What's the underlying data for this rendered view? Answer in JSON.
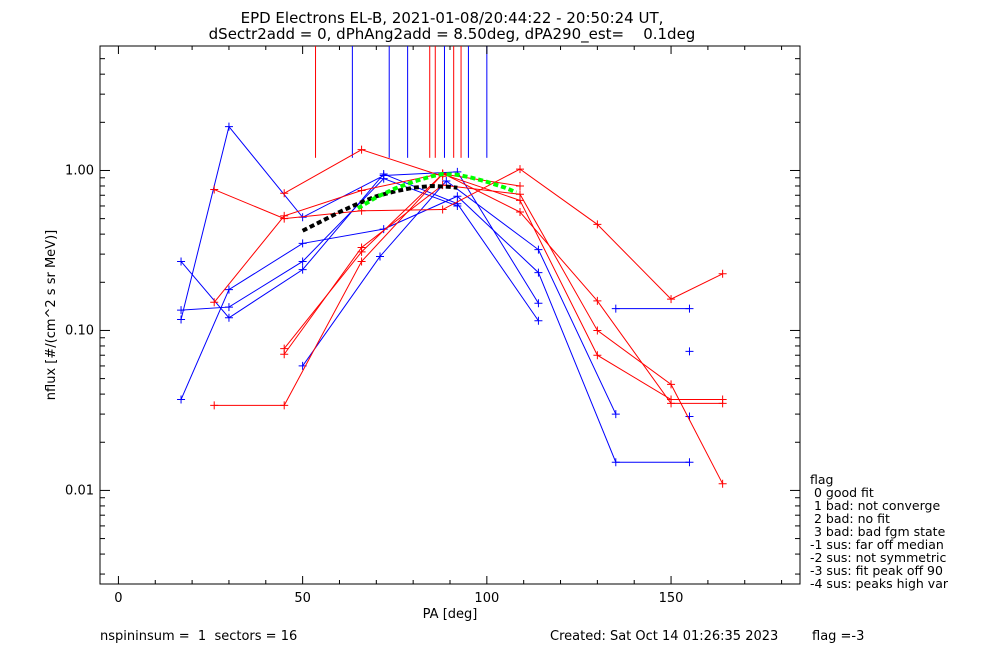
{
  "chart_data": {
    "type": "line",
    "title": "EPD Electrons EL-B, 2021-01-08/20:44:22 - 20:50:24 UT,",
    "subtitle": "dSectr2add = 0, dPhAng2add = 8.50deg, dPA290_est=    0.1deg",
    "xlabel": "PA [deg]",
    "ylabel": "nflux [#/(cm^2 s sr MeV)]",
    "xlim": [
      -5,
      185
    ],
    "ylim": [
      0.0026,
      6.0
    ],
    "y_scale": "log",
    "grid": false,
    "x_ticks": [
      {
        "value": 0,
        "label": "0"
      },
      {
        "value": 50,
        "label": "50"
      },
      {
        "value": 100,
        "label": "100"
      },
      {
        "value": 150,
        "label": "150"
      }
    ],
    "y_ticks": [
      {
        "value": 0.01,
        "label": "0.01"
      },
      {
        "value": 0.1,
        "label": "0.10"
      },
      {
        "value": 1.0,
        "label": "1.00"
      }
    ],
    "colors": {
      "blue": "#0000ff",
      "red": "#ff0000",
      "fit": "#000000",
      "fit2": "#00ff00"
    },
    "vertical_markers": [
      {
        "x": 53.5,
        "color": "red"
      },
      {
        "x": 63.5,
        "color": "blue"
      },
      {
        "x": 73.5,
        "color": "blue"
      },
      {
        "x": 78.5,
        "color": "blue"
      },
      {
        "x": 84.5,
        "color": "red"
      },
      {
        "x": 86,
        "color": "red"
      },
      {
        "x": 88.5,
        "color": "blue"
      },
      {
        "x": 91,
        "color": "red"
      },
      {
        "x": 93,
        "color": "red"
      },
      {
        "x": 95,
        "color": "blue"
      },
      {
        "x": 100,
        "color": "blue"
      }
    ],
    "series": [
      {
        "color": "blue",
        "points": [
          [
            17,
            0.037
          ],
          [
            30,
            0.18
          ],
          [
            50,
            0.35
          ],
          [
            72,
            0.43
          ],
          [
            92,
            0.69
          ],
          [
            114,
            0.23
          ],
          [
            135,
            0.015
          ],
          [
            155,
            0.015
          ]
        ]
      },
      {
        "color": "blue",
        "points": [
          [
            17,
            0.27
          ],
          [
            30,
            0.12
          ],
          [
            50,
            0.24
          ],
          [
            72,
            0.95
          ],
          [
            92,
            0.62
          ],
          [
            114,
            0.115
          ]
        ]
      },
      {
        "color": "blue",
        "points": [
          [
            17,
            0.117
          ],
          [
            30,
            1.88
          ],
          [
            50,
            0.51
          ],
          [
            72,
            0.93
          ],
          [
            92,
            0.98
          ],
          [
            114,
            0.148
          ]
        ]
      },
      {
        "color": "blue",
        "points": [
          [
            17,
            0.134
          ],
          [
            30,
            0.14
          ],
          [
            50,
            0.27
          ],
          [
            72,
            0.89
          ],
          [
            92,
            0.6
          ]
        ]
      },
      {
        "color": "blue",
        "points": [
          [
            50,
            0.06
          ],
          [
            71,
            0.29
          ],
          [
            89,
            0.86
          ],
          [
            114,
            0.32
          ],
          [
            135,
            0.03
          ]
        ]
      },
      {
        "color": "blue",
        "points": [
          [
            135,
            0.137
          ],
          [
            155,
            0.137
          ]
        ]
      },
      {
        "color": "blue",
        "points": [
          [
            155,
            0.074
          ]
        ]
      },
      {
        "color": "blue",
        "points": [
          [
            155,
            0.029
          ]
        ]
      },
      {
        "color": "red",
        "points": [
          [
            26,
            0.034
          ],
          [
            45,
            0.034
          ],
          [
            66,
            0.27
          ],
          [
            88,
            0.95
          ],
          [
            109,
            0.65
          ],
          [
            130,
            0.07
          ],
          [
            150,
            0.037
          ],
          [
            164,
            0.037
          ]
        ]
      },
      {
        "color": "red",
        "points": [
          [
            26,
            0.15
          ],
          [
            45,
            0.52
          ],
          [
            66,
            0.75
          ],
          [
            88,
            0.96
          ],
          [
            109,
            0.55
          ],
          [
            130,
            0.153
          ],
          [
            150,
            0.035
          ],
          [
            164,
            0.035
          ]
        ]
      },
      {
        "color": "red",
        "points": [
          [
            26,
            0.76
          ],
          [
            45,
            0.5
          ],
          [
            66,
            0.56
          ],
          [
            88,
            0.57
          ],
          [
            109,
            1.02
          ],
          [
            130,
            0.46
          ],
          [
            150,
            0.157
          ],
          [
            164,
            0.226
          ]
        ]
      },
      {
        "color": "red",
        "points": [
          [
            45,
            0.071
          ],
          [
            66,
            0.33
          ],
          [
            88,
            0.81
          ],
          [
            109,
            0.71
          ],
          [
            130,
            0.1
          ],
          [
            150,
            0.046
          ],
          [
            164,
            0.011
          ]
        ]
      },
      {
        "color": "red",
        "points": [
          [
            45,
            0.077
          ],
          [
            66,
            0.31
          ],
          [
            88,
            0.95
          ],
          [
            109,
            0.8
          ]
        ]
      },
      {
        "color": "red",
        "points": [
          [
            45,
            0.72
          ],
          [
            66,
            1.35
          ],
          [
            88,
            0.92
          ]
        ]
      }
    ],
    "fits": [
      {
        "color": "fit",
        "points": [
          [
            50,
            0.42
          ],
          [
            55,
            0.48
          ],
          [
            60,
            0.55
          ],
          [
            65,
            0.62
          ],
          [
            70,
            0.69
          ],
          [
            75,
            0.74
          ],
          [
            80,
            0.78
          ],
          [
            85,
            0.8
          ],
          [
            90,
            0.79
          ],
          [
            92,
            0.78
          ]
        ]
      },
      {
        "color": "fit2",
        "points": [
          [
            65,
            0.58
          ],
          [
            70,
            0.68
          ],
          [
            75,
            0.77
          ],
          [
            80,
            0.85
          ],
          [
            85,
            0.92
          ],
          [
            88,
            0.95
          ],
          [
            92,
            0.94
          ],
          [
            96,
            0.9
          ],
          [
            100,
            0.85
          ],
          [
            105,
            0.78
          ],
          [
            108,
            0.73
          ]
        ]
      }
    ]
  },
  "legend": {
    "lines": [
      "flag",
      " 0 good fit",
      " 1 bad: not converge",
      " 2 bad: no fit",
      " 3 bad: bad fgm state",
      "-1 sus: far off median",
      "-2 sus: not symmetric",
      "-3 sus: fit peak off 90",
      "-4 sus: peaks high var"
    ]
  },
  "footer": {
    "left": "nspininsum =  1  sectors = 16",
    "created": "Created: Sat Oct 14 01:26:35 2023",
    "flag": "flag =-3"
  }
}
